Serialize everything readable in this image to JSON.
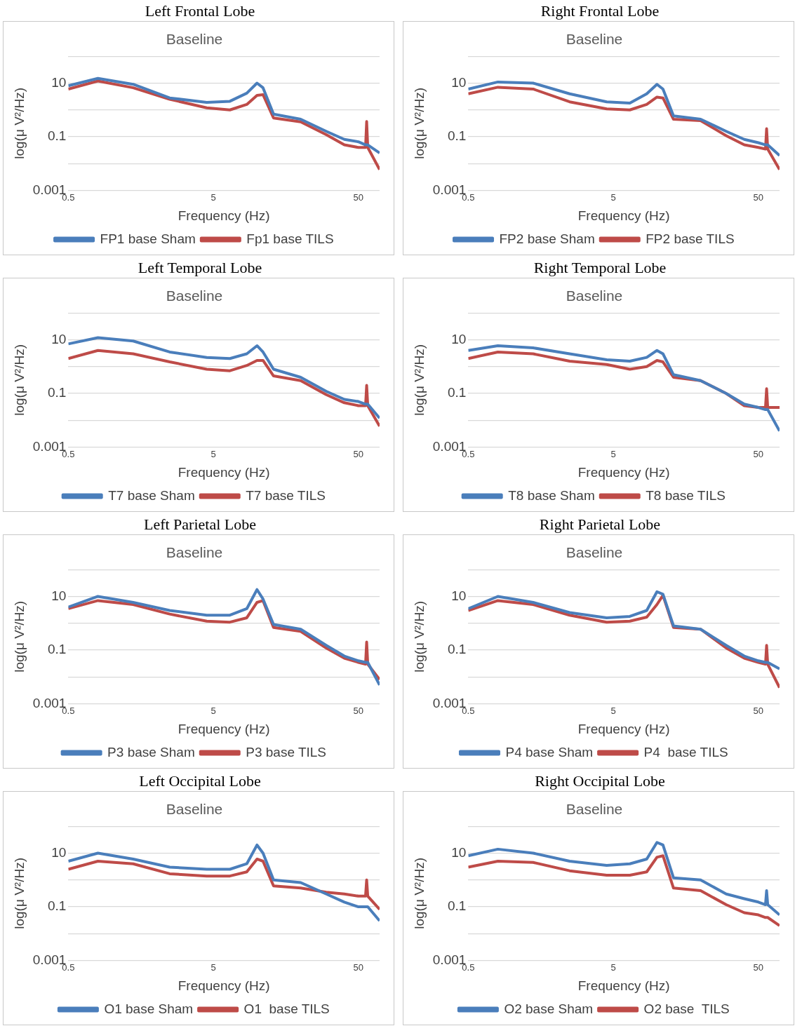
{
  "chart_data": [
    {
      "type": "line",
      "title": "Left Frontal Lobe",
      "subtitle": "Baseline",
      "xlabel": "Frequency (Hz)",
      "ylabel": "log(μ V²/Hz)",
      "log": "xy",
      "grid": "y",
      "legend": "bottom",
      "xlim": [
        0.5,
        70
      ],
      "xticks": [
        0.5,
        5,
        50
      ],
      "ylim": [
        0.001,
        100
      ],
      "yticks": [
        0.001,
        {
          "value": 0.01,
          "label": null
        },
        0.1,
        {
          "value": 1,
          "label": null
        },
        10,
        {
          "value": 100,
          "label": null
        }
      ],
      "x": [
        0.5,
        0.8,
        1.4,
        2.5,
        4.5,
        6.5,
        8.5,
        10,
        11,
        13,
        20,
        30,
        40,
        50,
        56,
        57,
        58,
        70
      ],
      "series": [
        {
          "name": "FP1 base Sham",
          "color": "#4a7ebb",
          "values": [
            8,
            15,
            9,
            2.8,
            1.9,
            2.1,
            4.2,
            10,
            6.7,
            0.7,
            0.45,
            0.16,
            0.08,
            0.065,
            0.05,
            0.05,
            0.05,
            0.025
          ]
        },
        {
          "name": "Fp1 base TILS",
          "color": "#be4b48",
          "values": [
            6,
            12,
            6.7,
            2.5,
            1.2,
            1,
            1.6,
            3.5,
            3.7,
            0.5,
            0.36,
            0.12,
            0.05,
            0.04,
            0.04,
            0.37,
            0.04,
            0.006
          ]
        }
      ]
    },
    {
      "type": "line",
      "title": "Right Frontal Lobe",
      "subtitle": "Baseline",
      "xlabel": "Frequency (Hz)",
      "ylabel": "log(μ V²/Hz)",
      "log": "xy",
      "grid": "y",
      "legend": "bottom",
      "xlim": [
        0.5,
        70
      ],
      "xticks": [
        0.5,
        5,
        50
      ],
      "ylim": [
        0.001,
        100
      ],
      "yticks": [
        0.001,
        {
          "value": 0.01,
          "label": null
        },
        0.1,
        {
          "value": 1,
          "label": null
        },
        10,
        {
          "value": 100,
          "label": null
        }
      ],
      "x": [
        0.5,
        0.8,
        1.4,
        2.5,
        4.5,
        6.5,
        8.5,
        10,
        11,
        13,
        20,
        30,
        40,
        50,
        56,
        57,
        58,
        70
      ],
      "series": [
        {
          "name": "FP2 base Sham",
          "color": "#4a7ebb",
          "values": [
            6,
            11,
            10,
            4,
            2,
            1.8,
            4,
            9,
            6,
            0.6,
            0.45,
            0.16,
            0.08,
            0.06,
            0.05,
            0.05,
            0.05,
            0.02
          ]
        },
        {
          "name": "FP2 base TILS",
          "color": "#be4b48",
          "values": [
            4,
            7,
            6,
            2,
            1.1,
            1,
            1.6,
            3,
            2.8,
            0.45,
            0.4,
            0.11,
            0.05,
            0.04,
            0.035,
            0.2,
            0.035,
            0.006
          ]
        }
      ]
    },
    {
      "type": "line",
      "title": "Left Temporal Lobe",
      "subtitle": "Baseline",
      "xlabel": "Frequency (Hz)",
      "ylabel": "log(μ V²/Hz)",
      "log": "xy",
      "grid": "y",
      "legend": "bottom",
      "xlim": [
        0.5,
        70
      ],
      "xticks": [
        0.5,
        5,
        50
      ],
      "ylim": [
        0.001,
        100
      ],
      "yticks": [
        0.001,
        {
          "value": 0.01,
          "label": null
        },
        0.1,
        {
          "value": 1,
          "label": null
        },
        10,
        {
          "value": 100,
          "label": null
        }
      ],
      "x": [
        0.5,
        0.8,
        1.4,
        2.5,
        4.5,
        6.5,
        8.5,
        10,
        11,
        13,
        20,
        30,
        40,
        50,
        56,
        57,
        58,
        70
      ],
      "series": [
        {
          "name": "T7 base Sham",
          "color": "#4a7ebb",
          "values": [
            7,
            12,
            9,
            3.5,
            2.2,
            2,
            3,
            6,
            3.5,
            0.8,
            0.4,
            0.12,
            0.06,
            0.05,
            0.04,
            0.04,
            0.04,
            0.012
          ]
        },
        {
          "name": "T7 base TILS",
          "color": "#be4b48",
          "values": [
            2,
            4,
            3,
            1.5,
            0.8,
            0.7,
            1.1,
            1.7,
            1.7,
            0.45,
            0.3,
            0.09,
            0.045,
            0.035,
            0.035,
            0.2,
            0.035,
            0.006
          ]
        }
      ]
    },
    {
      "type": "line",
      "title": "Right Temporal Lobe",
      "subtitle": "Baseline",
      "xlabel": "Frequency (Hz)",
      "ylabel": "log(μ V²/Hz)",
      "log": "xy",
      "grid": "y",
      "legend": "bottom",
      "xlim": [
        0.5,
        70
      ],
      "xticks": [
        0.5,
        5,
        50
      ],
      "ylim": [
        0.001,
        100
      ],
      "yticks": [
        0.001,
        {
          "value": 0.01,
          "label": null
        },
        0.1,
        {
          "value": 1,
          "label": null
        },
        10,
        {
          "value": 100,
          "label": null
        }
      ],
      "x": [
        0.5,
        0.8,
        1.4,
        2.5,
        4.5,
        6.5,
        8.5,
        10,
        11,
        13,
        20,
        30,
        40,
        50,
        56,
        57,
        58,
        70
      ],
      "series": [
        {
          "name": "T8 base Sham",
          "color": "#4a7ebb",
          "values": [
            4,
            6,
            5,
            3,
            1.8,
            1.6,
            2.2,
            4,
            3,
            0.5,
            0.3,
            0.1,
            0.04,
            0.03,
            0.025,
            0.025,
            0.025,
            0.004
          ]
        },
        {
          "name": "T8 base TILS",
          "color": "#be4b48",
          "values": [
            2,
            3.5,
            3,
            1.6,
            1.2,
            0.8,
            1,
            1.7,
            1.5,
            0.4,
            0.3,
            0.1,
            0.035,
            0.03,
            0.03,
            0.15,
            0.03,
            0.03
          ]
        }
      ]
    },
    {
      "type": "line",
      "title": "Left Parietal Lobe",
      "subtitle": "Baseline",
      "xlabel": "Frequency (Hz)",
      "ylabel": "log(μ V²/Hz)",
      "log": "xy",
      "grid": "y",
      "legend": "bottom",
      "xlim": [
        0.5,
        70
      ],
      "xticks": [
        0.5,
        5,
        50
      ],
      "ylim": [
        0.001,
        100
      ],
      "yticks": [
        0.001,
        {
          "value": 0.01,
          "label": null
        },
        0.1,
        {
          "value": 1,
          "label": null
        },
        10,
        {
          "value": 100,
          "label": null
        }
      ],
      "x": [
        0.5,
        0.8,
        1.4,
        2.5,
        4.5,
        6.5,
        8.5,
        10,
        11,
        13,
        20,
        30,
        40,
        50,
        56,
        57,
        58,
        70
      ],
      "series": [
        {
          "name": "P3 base Sham",
          "color": "#4a7ebb",
          "values": [
            4,
            10,
            6,
            3,
            2,
            2,
            3.5,
            18,
            8,
            0.9,
            0.6,
            0.15,
            0.06,
            0.04,
            0.035,
            0.035,
            0.035,
            0.005
          ]
        },
        {
          "name": "P3 base TILS",
          "color": "#be4b48",
          "values": [
            3.5,
            7,
            5,
            2.2,
            1.2,
            1.1,
            1.6,
            6,
            7,
            0.7,
            0.5,
            0.12,
            0.05,
            0.035,
            0.03,
            0.2,
            0.03,
            0.008
          ]
        }
      ]
    },
    {
      "type": "line",
      "title": "Right Parietal Lobe",
      "subtitle": "Baseline",
      "xlabel": "Frequency (Hz)",
      "ylabel": "log(μ V²/Hz)",
      "log": "xy",
      "grid": "y",
      "legend": "bottom",
      "xlim": [
        0.5,
        70
      ],
      "xticks": [
        0.5,
        5,
        50
      ],
      "ylim": [
        0.001,
        100
      ],
      "yticks": [
        0.001,
        {
          "value": 0.01,
          "label": null
        },
        0.1,
        {
          "value": 1,
          "label": null
        },
        10,
        {
          "value": 100,
          "label": null
        }
      ],
      "x": [
        0.5,
        0.8,
        1.4,
        2.5,
        4.5,
        6.5,
        8.5,
        10,
        11,
        13,
        20,
        30,
        40,
        50,
        56,
        57,
        58,
        70
      ],
      "series": [
        {
          "name": "P4 base Sham",
          "color": "#4a7ebb",
          "values": [
            3.5,
            10,
            6,
            2.5,
            1.6,
            1.8,
            3,
            15,
            12,
            0.8,
            0.6,
            0.15,
            0.06,
            0.04,
            0.035,
            0.035,
            0.035,
            0.02
          ]
        },
        {
          "name": "P4  base TILS",
          "color": "#be4b48",
          "values": [
            3,
            7,
            5,
            2,
            1.1,
            1.2,
            1.7,
            5,
            11,
            0.7,
            0.6,
            0.12,
            0.05,
            0.035,
            0.03,
            0.15,
            0.03,
            0.004
          ]
        }
      ]
    },
    {
      "type": "line",
      "title": "Left Occipital Lobe",
      "subtitle": "Baseline",
      "xlabel": "Frequency (Hz)",
      "ylabel": "log(μ V²/Hz)",
      "log": "xy",
      "grid": "y",
      "legend": "bottom",
      "xlim": [
        0.5,
        70
      ],
      "xticks": [
        0.5,
        5,
        50
      ],
      "ylim": [
        0.001,
        100
      ],
      "yticks": [
        0.001,
        {
          "value": 0.01,
          "label": null
        },
        0.1,
        {
          "value": 1,
          "label": null
        },
        10,
        {
          "value": 100,
          "label": null
        }
      ],
      "x": [
        0.5,
        0.8,
        1.4,
        2.5,
        4.5,
        6.5,
        8.5,
        10,
        11,
        13,
        20,
        30,
        40,
        50,
        56,
        57,
        58,
        70
      ],
      "series": [
        {
          "name": "O1 base Sham",
          "color": "#4a7ebb",
          "values": [
            5,
            10,
            6,
            3,
            2.5,
            2.5,
            4,
            20,
            10,
            1,
            0.8,
            0.3,
            0.15,
            0.1,
            0.1,
            0.1,
            0.1,
            0.03
          ]
        },
        {
          "name": "O1  base TILS",
          "color": "#be4b48",
          "values": [
            2.5,
            5,
            4,
            1.7,
            1.4,
            1.4,
            2,
            6,
            5,
            0.6,
            0.5,
            0.35,
            0.3,
            0.25,
            0.25,
            1,
            0.25,
            0.08
          ]
        }
      ]
    },
    {
      "type": "line",
      "title": "Right Occipital Lobe",
      "subtitle": "Baseline",
      "xlabel": "Frequency (Hz)",
      "ylabel": "log(μ V²/Hz)",
      "log": "xy",
      "grid": "y",
      "legend": "bottom",
      "xlim": [
        0.5,
        70
      ],
      "xticks": [
        0.5,
        5,
        50
      ],
      "ylim": [
        0.001,
        100
      ],
      "yticks": [
        0.001,
        {
          "value": 0.01,
          "label": null
        },
        0.1,
        {
          "value": 1,
          "label": null
        },
        10,
        {
          "value": 100,
          "label": null
        }
      ],
      "x": [
        0.5,
        0.8,
        1.4,
        2.5,
        4.5,
        6.5,
        8.5,
        10,
        11,
        13,
        20,
        30,
        40,
        50,
        56,
        57,
        58,
        70
      ],
      "series": [
        {
          "name": "O2 base Sham",
          "color": "#4a7ebb",
          "values": [
            8,
            14,
            10,
            5,
            3.5,
            4,
            6,
            25,
            20,
            1.2,
            1,
            0.3,
            0.2,
            0.15,
            0.12,
            0.4,
            0.12,
            0.05
          ]
        },
        {
          "name": "O2 base  TILS",
          "color": "#be4b48",
          "values": [
            3,
            5,
            4.5,
            2.2,
            1.5,
            1.5,
            2,
            7,
            8,
            0.5,
            0.4,
            0.12,
            0.06,
            0.05,
            0.04,
            0.04,
            0.04,
            0.02
          ]
        }
      ]
    }
  ]
}
